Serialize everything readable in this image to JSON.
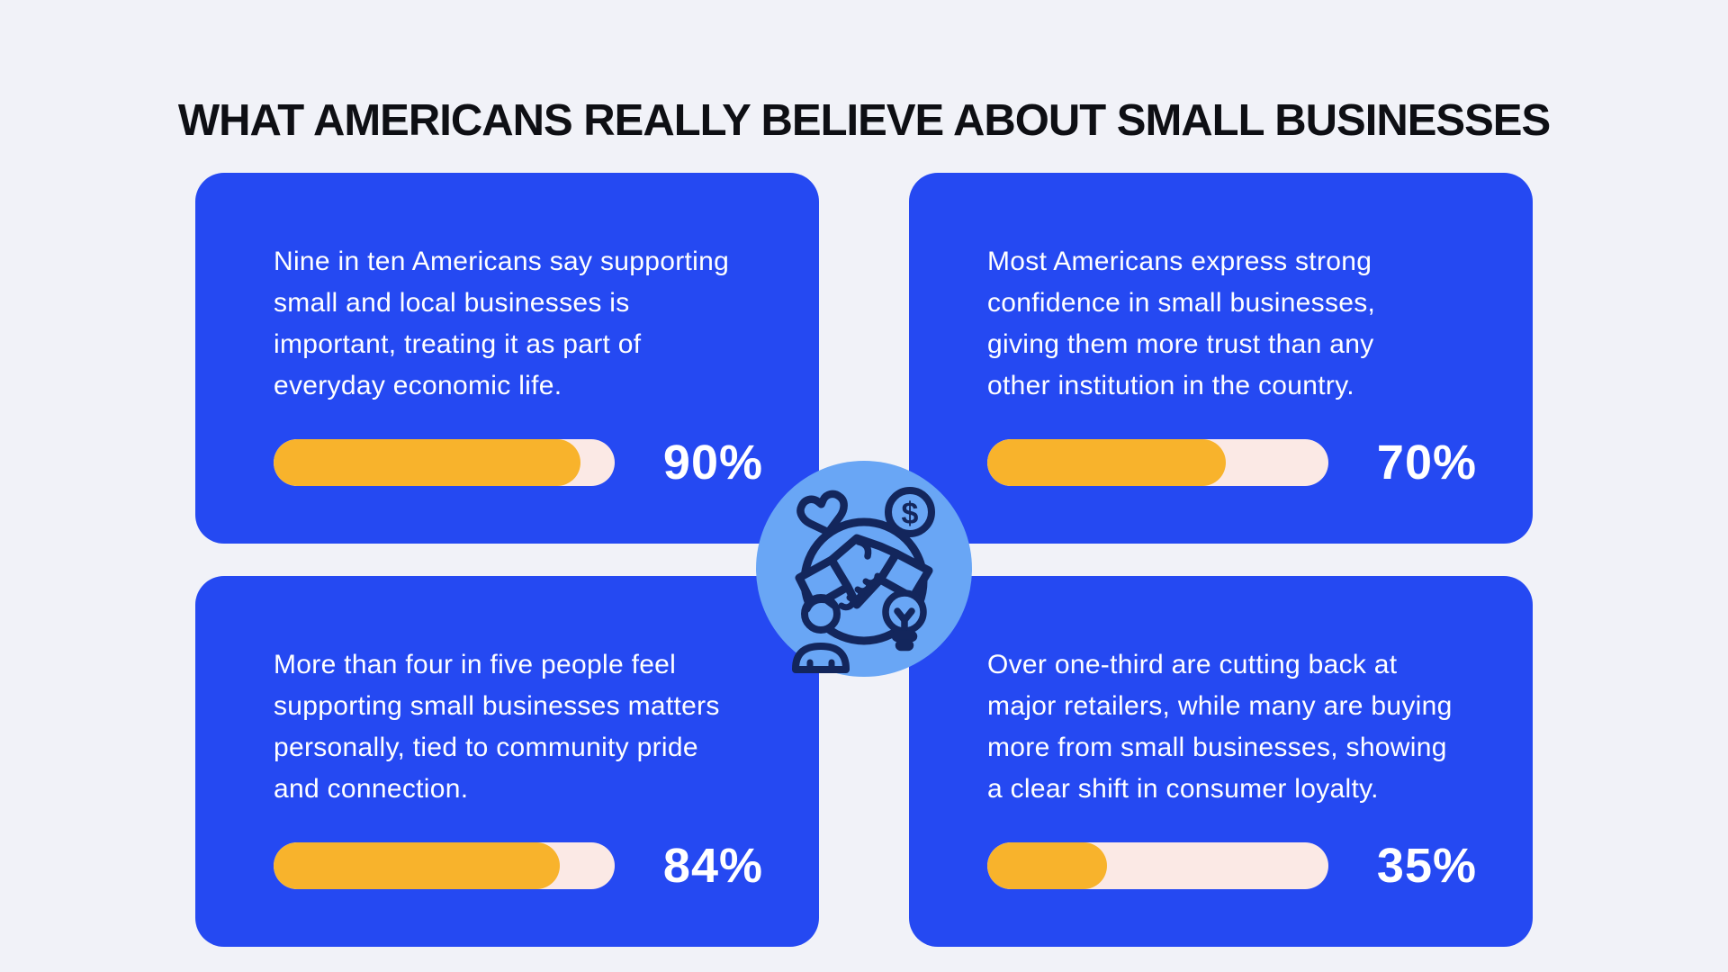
{
  "title": "WHAT AMERICANS REALLY BELIEVE ABOUT SMALL BUSINESSES",
  "colors": {
    "background": "#F1F2F8",
    "card_blue": "#2549F2",
    "bar_fill_yellow": "#F8B32C",
    "bar_track_pink": "#FBE9E5",
    "badge_circle_blue": "#69A6F5",
    "icon_line_navy": "#13265C",
    "card_text": "#FFFFFF",
    "title_text": "#0E0F14"
  },
  "center_icon": {
    "name": "community-handshake-icon",
    "elements": [
      "heart",
      "dollar-coin",
      "handshake",
      "person",
      "lightbulb",
      "ring"
    ]
  },
  "cards": [
    {
      "position": "top-left",
      "text": "Nine in ten Americans say supporting\nsmall and local businesses is\nimportant, treating it as part of\neveryday economic life.",
      "percent": 90,
      "percent_label": "90%"
    },
    {
      "position": "top-right",
      "text": "Most Americans express strong\nconfidence in small businesses,\ngiving them more trust than any\nother institution in the country.",
      "percent": 70,
      "percent_label": "70%"
    },
    {
      "position": "bottom-left",
      "text": "More than four in five people feel\nsupporting small businesses matters\npersonally, tied to community pride\nand connection.",
      "percent": 84,
      "percent_label": "84%"
    },
    {
      "position": "bottom-right",
      "text": "Over one-third are cutting back at\nmajor retailers, while many are buying\nmore from small businesses, showing\na clear shift in consumer loyalty.",
      "percent": 35,
      "percent_label": "35%"
    }
  ],
  "chart_data": {
    "type": "bar",
    "title": "WHAT AMERICANS REALLY BELIEVE ABOUT SMALL BUSINESSES",
    "categories": [
      "Nine in ten Americans say supporting small and local businesses is important, treating it as part of everyday economic life.",
      "Most Americans express strong confidence in small businesses, giving them more trust than any other institution in the country.",
      "More than four in five people feel supporting small businesses matters personally, tied to community pride and connection.",
      "Over one-third are cutting back at major retailers, while many are buying more from small businesses, showing a clear shift in consumer loyalty."
    ],
    "values": [
      90,
      70,
      84,
      35
    ],
    "unit": "%",
    "value_range": [
      0,
      100
    ],
    "bar_color": "#F8B32C",
    "track_color": "#FBE9E5",
    "legend": "none",
    "grid": "off"
  }
}
